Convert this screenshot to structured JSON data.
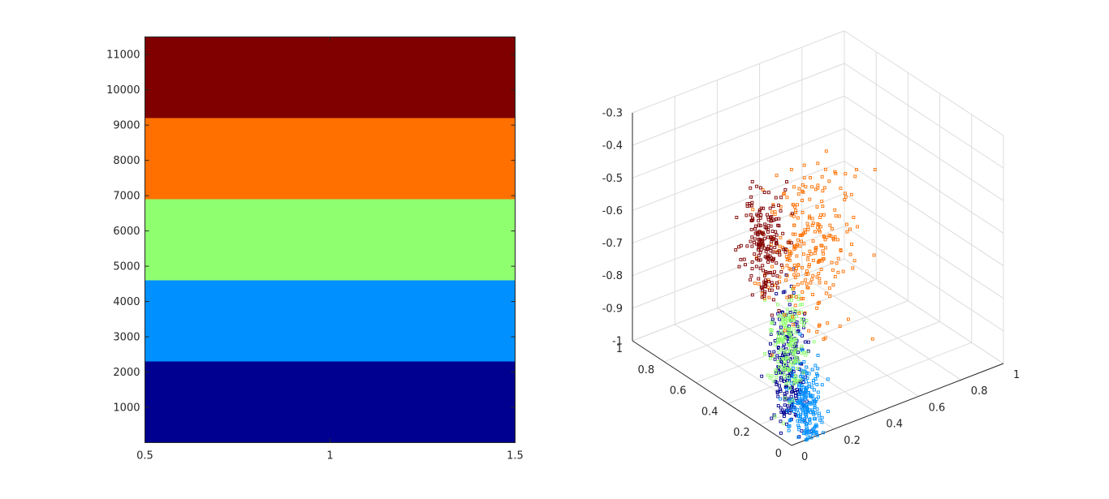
{
  "chart_data": [
    {
      "type": "heatmap",
      "xlim": [
        0.5,
        1.5
      ],
      "ylim": [
        0,
        11500
      ],
      "x_ticks": [
        "0.5",
        "1",
        "1.5"
      ],
      "y_ticks": [
        "1000",
        "2000",
        "3000",
        "4000",
        "5000",
        "6000",
        "7000",
        "8000",
        "9000",
        "10000",
        "11000"
      ],
      "bands": [
        {
          "from": 0,
          "to": 2300,
          "color": "#000090"
        },
        {
          "from": 2300,
          "to": 4600,
          "color": "#0090ff"
        },
        {
          "from": 4600,
          "to": 6900,
          "color": "#8fff70"
        },
        {
          "from": 6900,
          "to": 9200,
          "color": "#ff7000"
        },
        {
          "from": 9200,
          "to": 11500,
          "color": "#800000"
        }
      ],
      "grid": false
    },
    {
      "type": "scatter",
      "projection": "3d",
      "xlim": [
        0,
        1
      ],
      "ylim": [
        0,
        1
      ],
      "zlim": [
        -1,
        -0.3
      ],
      "x_ticks": [
        "0",
        "0.2",
        "0.4",
        "0.6",
        "0.8",
        "1"
      ],
      "y_ticks": [
        "0",
        "0.2",
        "0.4",
        "0.6",
        "0.8",
        "1"
      ],
      "z_ticks": [
        "-1",
        "-0.9",
        "-0.8",
        "-0.7",
        "-0.6",
        "-0.5",
        "-0.4",
        "-0.3"
      ],
      "grid": true,
      "marker": "square",
      "clusters": [
        {
          "color": "#000090",
          "x": 0.08,
          "y": 0.12,
          "z": -0.82,
          "spread": [
            0.03,
            0.04,
            0.1
          ],
          "count": 220
        },
        {
          "color": "#0090ff",
          "x": 0.1,
          "y": 0.05,
          "z": -0.92,
          "spread": [
            0.03,
            0.04,
            0.07
          ],
          "count": 200
        },
        {
          "color": "#8fff70",
          "x": 0.1,
          "y": 0.16,
          "z": -0.78,
          "spread": [
            0.03,
            0.04,
            0.08
          ],
          "count": 180
        },
        {
          "color": "#ff7000",
          "x": 0.25,
          "y": 0.22,
          "z": -0.52,
          "spread": [
            0.1,
            0.06,
            0.11
          ],
          "count": 260
        },
        {
          "color": "#800000",
          "x": 0.1,
          "y": 0.3,
          "z": -0.52,
          "spread": [
            0.03,
            0.05,
            0.09
          ],
          "count": 200
        }
      ]
    }
  ]
}
